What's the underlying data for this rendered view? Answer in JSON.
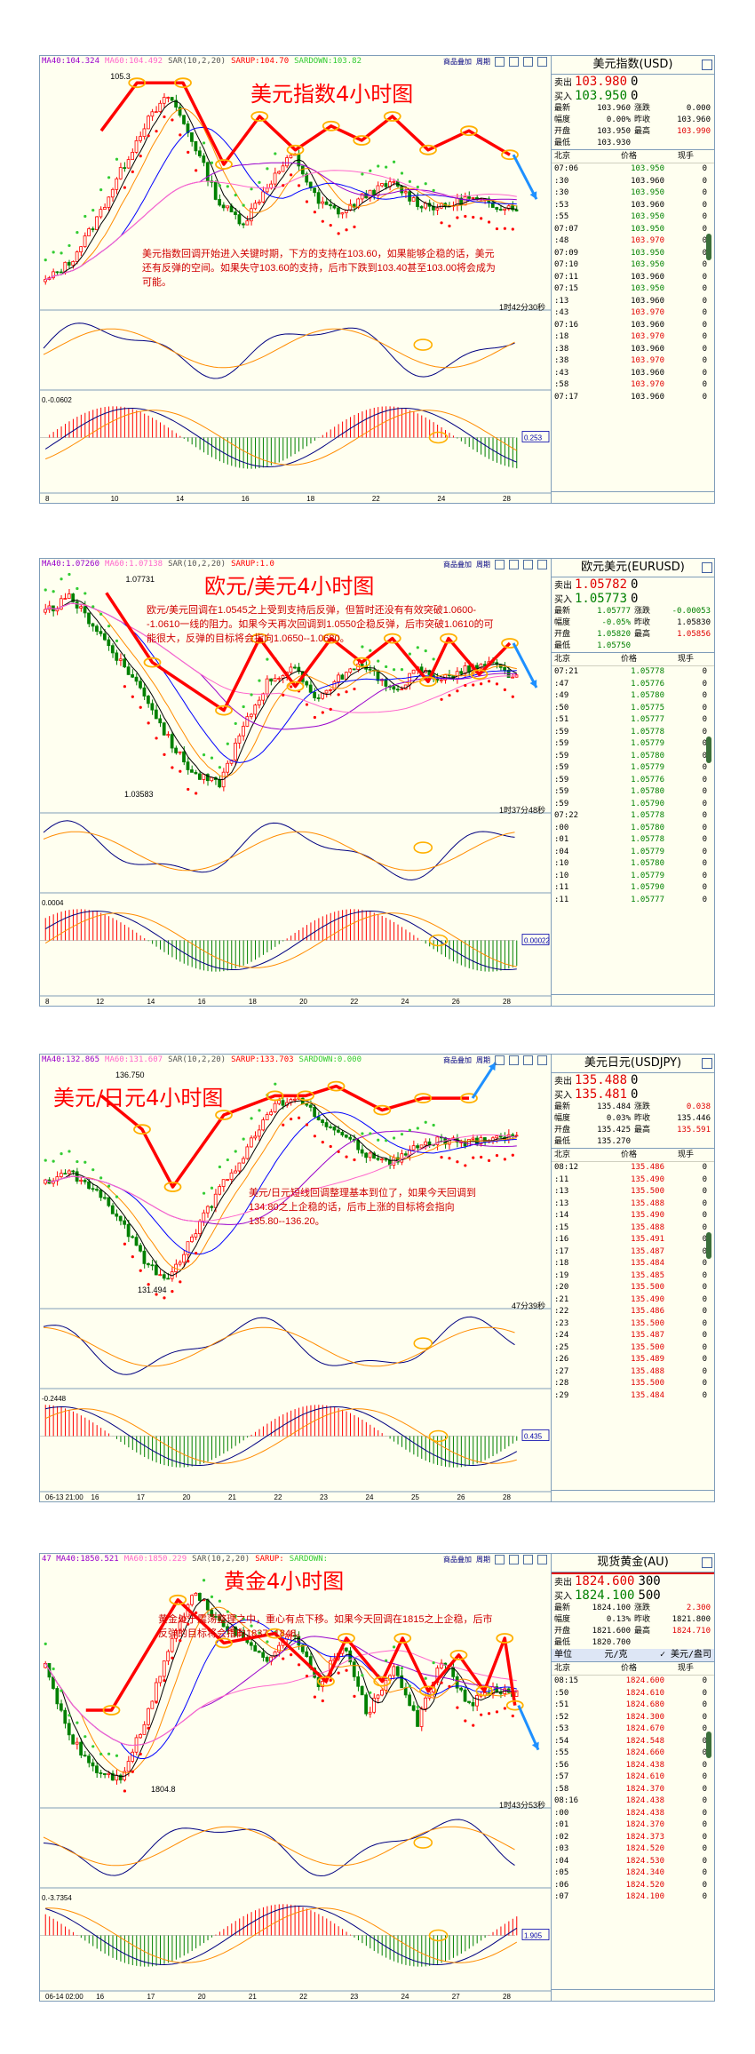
{
  "colors": {
    "bg": "#fffff0",
    "up": "#ff0000",
    "down": "#008000",
    "ma5": "#000000",
    "ma10": "#ff8c00",
    "ma20": "#0000ff",
    "ma40": "#9900cc",
    "ma60": "#ff66cc",
    "sar_up": "#ff0000",
    "sar_down": "#33cc33",
    "annot": "#ff0000",
    "arrow": "#1e90ff",
    "circle": "#ffb000",
    "price_red": "#e00000",
    "price_green": "#008000"
  },
  "toolbar": {
    "add": "商品叠加",
    "cycle": "周期"
  },
  "panels": [
    {
      "id": "dxy",
      "title": "美元指数4小时图",
      "indicators": [
        "MA40:104.324",
        "MA60:104.492",
        "SAR(10,2,20)",
        "SARUP:104.70",
        "SARDOWN:103.82"
      ],
      "note": "美元指数回调开始进入关键时期，下方的支持在103.60，如果能够企稳的话，美元还有反弹的空间。如果失守103.60的支持，后市下跌到103.40甚至103.00将会成为可能。",
      "countdown": "1时42分30秒",
      "high_label": "105.3",
      "low_label": "",
      "macd_label": "0.-0.0602",
      "macd_value": "0.253",
      "x_ticks": [
        "8",
        "10",
        "14",
        "16",
        "18",
        "22",
        "24",
        "28"
      ],
      "chart_data": {
        "type": "candlestick",
        "path": [
          [
            0.12,
            0.26
          ],
          [
            0.19,
            0.06
          ],
          [
            0.28,
            0.06
          ],
          [
            0.36,
            0.4
          ],
          [
            0.43,
            0.2
          ],
          [
            0.5,
            0.34
          ],
          [
            0.57,
            0.24
          ],
          [
            0.63,
            0.3
          ],
          [
            0.69,
            0.2
          ],
          [
            0.76,
            0.34
          ],
          [
            0.84,
            0.26
          ],
          [
            0.92,
            0.36
          ]
        ],
        "closes": [
          103.2,
          103.4,
          103.8,
          104.3,
          104.8,
          105.1,
          104.6,
          104.0,
          103.8,
          104.2,
          104.5,
          104.0,
          103.9,
          104.1,
          104.2,
          104.0,
          103.95,
          104.05,
          103.98,
          103.96
        ]
      },
      "quote": {
        "name": "美元指数(USD)",
        "sell_label": "卖出",
        "sell": "103.980",
        "sell_vol": "0",
        "buy_label": "买入",
        "buy": "103.950",
        "buy_vol": "0",
        "stats": [
          [
            "最新",
            "103.960",
            "涨跌",
            "0.000"
          ],
          [
            "幅度",
            "0.00%",
            "昨收",
            "103.960"
          ],
          [
            "开盘",
            "103.950",
            "最高",
            "103.990"
          ],
          [
            "最低",
            "103.930",
            "",
            ""
          ]
        ],
        "hdr": [
          "北京",
          "价格",
          "现手"
        ],
        "ticks": [
          [
            "07:06",
            "103.950",
            "0",
            "g"
          ],
          [
            ":30",
            "103.960",
            "0",
            "k"
          ],
          [
            ":30",
            "103.950",
            "0",
            "g"
          ],
          [
            ":53",
            "103.960",
            "0",
            "k"
          ],
          [
            ":55",
            "103.950",
            "0",
            "g"
          ],
          [
            "07:07",
            "103.950",
            "0",
            "g"
          ],
          [
            ":48",
            "103.970",
            "0",
            "r"
          ],
          [
            "07:09",
            "103.950",
            "0",
            "g"
          ],
          [
            "07:10",
            "103.950",
            "0",
            "g"
          ],
          [
            "07:11",
            "103.960",
            "0",
            "k"
          ],
          [
            "07:15",
            "103.950",
            "0",
            "g"
          ],
          [
            ":13",
            "103.960",
            "0",
            "k"
          ],
          [
            ":43",
            "103.970",
            "0",
            "r"
          ],
          [
            "07:16",
            "103.960",
            "0",
            "k"
          ],
          [
            ":18",
            "103.970",
            "0",
            "r"
          ],
          [
            ":38",
            "103.960",
            "0",
            "k"
          ],
          [
            ":38",
            "103.970",
            "0",
            "r"
          ],
          [
            ":43",
            "103.960",
            "0",
            "k"
          ],
          [
            ":58",
            "103.970",
            "0",
            "r"
          ],
          [
            "07:17",
            "103.960",
            "0",
            "k"
          ]
        ]
      }
    },
    {
      "id": "eurusd",
      "title": "欧元/美元4小时图",
      "indicators": [
        "MA40:1.07260",
        "MA60:1.07138",
        "SAR(10,2,20)",
        "SARUP:1.0"
      ],
      "note": "欧元/美元回调在1.0545之上受到支持后反弹，但暂时还没有有效突破1.0600--1.0610一线的阻力。如果今天再次回调到1.0550企稳反弹，后市突破1.0610的可能很大，反弹的目标将会指向1.0650--1.0680。",
      "countdown": "1时37分48秒",
      "high_label": "1.07731",
      "low_label": "1.03583",
      "macd_label": "0.0004",
      "macd_value": "0.00022",
      "x_ticks": [
        "8",
        "12",
        "14",
        "16",
        "18",
        "20",
        "22",
        "24",
        "26",
        "28"
      ],
      "chart_data": {
        "type": "candlestick",
        "path": [
          [
            0.13,
            0.09
          ],
          [
            0.22,
            0.38
          ],
          [
            0.36,
            0.58
          ],
          [
            0.43,
            0.28
          ],
          [
            0.5,
            0.48
          ],
          [
            0.57,
            0.28
          ],
          [
            0.63,
            0.38
          ],
          [
            0.69,
            0.28
          ],
          [
            0.76,
            0.46
          ],
          [
            0.8,
            0.28
          ],
          [
            0.86,
            0.43
          ],
          [
            0.92,
            0.3
          ]
        ],
        "closes": [
          1.072,
          1.075,
          1.069,
          1.062,
          1.055,
          1.045,
          1.038,
          1.036,
          1.048,
          1.058,
          1.06,
          1.054,
          1.059,
          1.061,
          1.055,
          1.06,
          1.058,
          1.06,
          1.061,
          1.058
        ]
      },
      "quote": {
        "name": "欧元美元(EURUSD)",
        "sell_label": "卖出",
        "sell": "1.05782",
        "sell_vol": "0",
        "buy_label": "买入",
        "buy": "1.05773",
        "buy_vol": "0",
        "stats": [
          [
            "最新",
            "1.05777",
            "涨跌",
            "-0.00053"
          ],
          [
            "幅度",
            "-0.05%",
            "昨收",
            "1.05830"
          ],
          [
            "开盘",
            "1.05820",
            "最高",
            "1.05856"
          ],
          [
            "最低",
            "1.05750",
            "",
            ""
          ]
        ],
        "hdr": [
          "北京",
          "价格",
          "现手"
        ],
        "ticks": [
          [
            "07:21",
            "1.05778",
            "0",
            "g"
          ],
          [
            ":47",
            "1.05776",
            "0",
            "g"
          ],
          [
            ":49",
            "1.05780",
            "0",
            "g"
          ],
          [
            ":50",
            "1.05775",
            "0",
            "g"
          ],
          [
            ":51",
            "1.05777",
            "0",
            "g"
          ],
          [
            ":59",
            "1.05778",
            "0",
            "g"
          ],
          [
            ":59",
            "1.05779",
            "0",
            "g"
          ],
          [
            ":59",
            "1.05780",
            "0",
            "g"
          ],
          [
            ":59",
            "1.05779",
            "0",
            "g"
          ],
          [
            ":59",
            "1.05776",
            "0",
            "g"
          ],
          [
            ":59",
            "1.05780",
            "0",
            "g"
          ],
          [
            ":59",
            "1.05790",
            "0",
            "g"
          ],
          [
            "07:22",
            "1.05778",
            "0",
            "g"
          ],
          [
            ":00",
            "1.05780",
            "0",
            "g"
          ],
          [
            ":01",
            "1.05778",
            "0",
            "g"
          ],
          [
            ":04",
            "1.05779",
            "0",
            "g"
          ],
          [
            ":10",
            "1.05780",
            "0",
            "g"
          ],
          [
            ":10",
            "1.05779",
            "0",
            "g"
          ],
          [
            ":11",
            "1.05790",
            "0",
            "g"
          ],
          [
            ":11",
            "1.05777",
            "0",
            "g"
          ]
        ]
      }
    },
    {
      "id": "usdjpy",
      "title": "美元/日元4小时图",
      "indicators": [
        "MA40:132.865",
        "MA60:131.607",
        "SAR(10,2,20)",
        "SARUP:133.703",
        "SARDOWN:0.000"
      ],
      "note": "美元/日元短线回调整理基本到位了，如果今天回调到134.80之上企稳的话，后市上涨的目标将会指向135.80--136.20。",
      "countdown": "47分39秒",
      "high_label": "136.750",
      "low_label": "131.494",
      "macd_label": "-0.2448",
      "macd_value": "0.435",
      "x_ticks": [
        "06-13 21:00",
        "16",
        "17",
        "20",
        "21",
        "22",
        "23",
        "24",
        "25",
        "26",
        "28"
      ],
      "chart_data": {
        "type": "candlestick",
        "path": [
          [
            0.12,
            0.12
          ],
          [
            0.2,
            0.26
          ],
          [
            0.26,
            0.5
          ],
          [
            0.36,
            0.2
          ],
          [
            0.46,
            0.12
          ],
          [
            0.52,
            0.12
          ],
          [
            0.58,
            0.08
          ],
          [
            0.67,
            0.18
          ],
          [
            0.75,
            0.13
          ],
          [
            0.84,
            0.13
          ]
        ],
        "closes": [
          134.2,
          134.5,
          134.0,
          133.2,
          132.0,
          131.5,
          132.8,
          134.0,
          135.0,
          136.2,
          136.7,
          136.0,
          135.5,
          135.0,
          134.8,
          135.2,
          135.4,
          135.3,
          135.5,
          135.45
        ]
      },
      "quote": {
        "name": "美元日元(USDJPY)",
        "sell_label": "卖出",
        "sell": "135.488",
        "sell_vol": "0",
        "buy_label": "买入",
        "buy": "135.481",
        "buy_vol": "0",
        "stats": [
          [
            "最新",
            "135.484",
            "涨跌",
            "0.038"
          ],
          [
            "幅度",
            "0.03%",
            "昨收",
            "135.446"
          ],
          [
            "开盘",
            "135.425",
            "最高",
            "135.591"
          ],
          [
            "最低",
            "135.270",
            "",
            ""
          ]
        ],
        "hdr": [
          "北京",
          "价格",
          "现手"
        ],
        "ticks": [
          [
            "08:12",
            "135.486",
            "0",
            "r"
          ],
          [
            ":11",
            "135.490",
            "0",
            "r"
          ],
          [
            ":13",
            "135.500",
            "0",
            "r"
          ],
          [
            ":13",
            "135.488",
            "0",
            "r"
          ],
          [
            ":14",
            "135.490",
            "0",
            "r"
          ],
          [
            ":15",
            "135.488",
            "0",
            "r"
          ],
          [
            ":16",
            "135.491",
            "0",
            "r"
          ],
          [
            ":17",
            "135.487",
            "0",
            "r"
          ],
          [
            ":18",
            "135.484",
            "0",
            "r"
          ],
          [
            ":19",
            "135.485",
            "0",
            "r"
          ],
          [
            ":20",
            "135.500",
            "0",
            "r"
          ],
          [
            ":21",
            "135.490",
            "0",
            "r"
          ],
          [
            ":22",
            "135.486",
            "0",
            "r"
          ],
          [
            ":23",
            "135.500",
            "0",
            "r"
          ],
          [
            ":24",
            "135.487",
            "0",
            "r"
          ],
          [
            ":25",
            "135.500",
            "0",
            "r"
          ],
          [
            ":26",
            "135.489",
            "0",
            "r"
          ],
          [
            ":27",
            "135.488",
            "0",
            "r"
          ],
          [
            ":28",
            "135.500",
            "0",
            "r"
          ],
          [
            ":29",
            "135.484",
            "0",
            "r"
          ]
        ]
      }
    },
    {
      "id": "gold",
      "title": "黄金4小时图",
      "indicators": [
        "47 MA40:1850.521",
        "MA60:1850.229",
        "SAR(10,2,20)",
        "SARUP:",
        "SARDOWN:"
      ],
      "note": "黄金处于震荡整理之中，重心有点下移。如果今天回调在1815之上企稳，后市反弹的目标将会指向1837--1848。",
      "countdown": "1时43分53秒",
      "high_label": "",
      "low_label": "1804.8",
      "macd_label": "0.-3.7354",
      "macd_value": "1.905",
      "x_ticks": [
        "06-14 02:00",
        "16",
        "17",
        "20",
        "21",
        "22",
        "23",
        "24",
        "27",
        "28"
      ],
      "chart_data": {
        "type": "candlestick",
        "path": [
          [
            0.09,
            0.6
          ],
          [
            0.14,
            0.6
          ],
          [
            0.27,
            0.14
          ],
          [
            0.36,
            0.32
          ],
          [
            0.46,
            0.28
          ],
          [
            0.56,
            0.48
          ],
          [
            0.6,
            0.3
          ],
          [
            0.67,
            0.48
          ],
          [
            0.71,
            0.3
          ],
          [
            0.76,
            0.52
          ],
          [
            0.82,
            0.37
          ],
          [
            0.87,
            0.52
          ],
          [
            0.91,
            0.3
          ],
          [
            0.93,
            0.58
          ]
        ],
        "closes": [
          1830,
          1815,
          1808,
          1806,
          1818,
          1835,
          1846,
          1840,
          1836,
          1832,
          1838,
          1826,
          1835,
          1820,
          1830,
          1818,
          1832,
          1822,
          1825,
          1824.6
        ]
      },
      "quote": {
        "name": "现货黄金(AU)",
        "sell_label": "卖出",
        "sell": "1824.600",
        "sell_vol": "300",
        "buy_label": "买入",
        "buy": "1824.100",
        "buy_vol": "500",
        "stats": [
          [
            "最新",
            "1824.100",
            "涨跌",
            "2.300"
          ],
          [
            "幅度",
            "0.13%",
            "昨收",
            "1821.800"
          ],
          [
            "开盘",
            "1821.600",
            "最高",
            "1824.710"
          ],
          [
            "最低",
            "1820.700",
            "",
            ""
          ]
        ],
        "unit_left": "单位",
        "unit_mid": "元/克",
        "unit_right": "✓ 美元/盎司",
        "hdr": [
          "北京",
          "价格",
          "现手"
        ],
        "ticks": [
          [
            "08:15",
            "1824.600",
            "0",
            "r"
          ],
          [
            ":50",
            "1824.610",
            "0",
            "r"
          ],
          [
            ":51",
            "1824.680",
            "0",
            "r"
          ],
          [
            ":52",
            "1824.300",
            "0",
            "r"
          ],
          [
            ":53",
            "1824.670",
            "0",
            "r"
          ],
          [
            ":54",
            "1824.548",
            "0",
            "r"
          ],
          [
            ":55",
            "1824.660",
            "0",
            "r"
          ],
          [
            ":56",
            "1824.438",
            "0",
            "r"
          ],
          [
            ":57",
            "1824.610",
            "0",
            "r"
          ],
          [
            ":58",
            "1824.370",
            "0",
            "r"
          ],
          [
            "08:16",
            "1824.438",
            "0",
            "r"
          ],
          [
            ":00",
            "1824.438",
            "0",
            "r"
          ],
          [
            ":01",
            "1824.370",
            "0",
            "r"
          ],
          [
            ":02",
            "1824.373",
            "0",
            "r"
          ],
          [
            ":03",
            "1824.520",
            "0",
            "r"
          ],
          [
            ":04",
            "1824.530",
            "0",
            "r"
          ],
          [
            ":05",
            "1824.340",
            "0",
            "r"
          ],
          [
            ":06",
            "1824.520",
            "0",
            "r"
          ],
          [
            ":07",
            "1824.100",
            "0",
            "r"
          ]
        ]
      }
    }
  ]
}
